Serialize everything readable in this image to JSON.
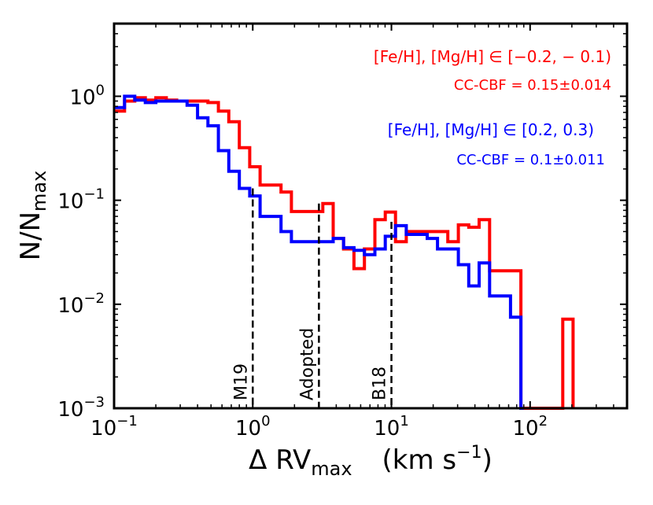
{
  "chart_data": {
    "type": "line",
    "style": "step-histogram",
    "x_scale": "log",
    "y_scale": "log",
    "xlim": [
      0.1,
      500
    ],
    "ylim": [
      0.001,
      5
    ],
    "xlabel": {
      "prefix": "Δ RV",
      "sub": "max",
      "units": "(km s",
      "units_sup": "−1",
      "units_close": ")"
    },
    "ylabel": {
      "main": "N/N",
      "sub": "max"
    },
    "x_ticks": [
      {
        "value": 0.1,
        "base": "10",
        "exp": "−1"
      },
      {
        "value": 1,
        "base": "10",
        "exp": "0"
      },
      {
        "value": 10,
        "base": "10",
        "exp": "1"
      },
      {
        "value": 100,
        "base": "10",
        "exp": "2"
      }
    ],
    "y_ticks": [
      {
        "value": 0.001,
        "base": "10",
        "exp": "−3"
      },
      {
        "value": 0.01,
        "base": "10",
        "exp": "−2"
      },
      {
        "value": 0.1,
        "base": "10",
        "exp": "−1"
      },
      {
        "value": 1,
        "base": "10",
        "exp": "0"
      }
    ],
    "series": [
      {
        "name": "[Fe/H], [Mg/H] ∈ [−0.2, − 0.1)",
        "color": "#ff0000",
        "cbf": "CC-CBF = 0.15±0.014",
        "edges": [
          0.1,
          0.119,
          0.141,
          0.168,
          0.2,
          0.238,
          0.283,
          0.336,
          0.4,
          0.475,
          0.565,
          0.672,
          0.8,
          0.951,
          1.13,
          1.34,
          1.6,
          1.9,
          2.26,
          2.69,
          3.2,
          3.8,
          4.52,
          5.37,
          6.39,
          7.6,
          9.03,
          10.7,
          12.8,
          15.2,
          18.1,
          21.5,
          25.5,
          30.4,
          36.1,
          42.9,
          51.0,
          60.7,
          72.2,
          85.8,
          102,
          121,
          144,
          172,
          204
        ],
        "values": [
          0.72,
          0.9,
          0.97,
          0.92,
          0.97,
          0.92,
          0.9,
          0.9,
          0.9,
          0.87,
          0.72,
          0.57,
          0.32,
          0.21,
          0.14,
          0.14,
          0.12,
          0.078,
          0.078,
          0.078,
          0.093,
          0.043,
          0.034,
          0.022,
          0.034,
          0.065,
          0.077,
          0.04,
          0.05,
          0.05,
          0.05,
          0.05,
          0.04,
          0.058,
          0.055,
          0.065,
          0.021,
          0.021,
          0.021,
          0,
          0,
          0,
          0,
          0.0072
        ]
      },
      {
        "name": "[Fe/H], [Mg/H] ∈ [0.2, 0.3)",
        "color": "#0000ff",
        "cbf": "CC-CBF = 0.1±0.011",
        "edges": [
          0.1,
          0.119,
          0.141,
          0.168,
          0.2,
          0.238,
          0.283,
          0.336,
          0.4,
          0.475,
          0.565,
          0.672,
          0.8,
          0.951,
          1.13,
          1.34,
          1.6,
          1.9,
          2.26,
          2.69,
          3.2,
          3.8,
          4.52,
          5.37,
          6.39,
          7.6,
          9.03,
          10.7,
          12.8,
          15.2,
          18.1,
          21.5,
          25.5,
          30.4,
          36.1,
          42.9,
          51.0,
          60.7,
          72.2,
          85.8,
          90.0
        ],
        "values": [
          0.78,
          1.0,
          0.92,
          0.87,
          0.9,
          0.9,
          0.9,
          0.82,
          0.62,
          0.52,
          0.3,
          0.19,
          0.13,
          0.11,
          0.07,
          0.07,
          0.05,
          0.04,
          0.04,
          0.04,
          0.04,
          0.043,
          0.035,
          0.033,
          0.03,
          0.034,
          0.045,
          0.057,
          0.047,
          0.047,
          0.043,
          0.034,
          0.034,
          0.024,
          0.015,
          0.025,
          0.012,
          0.012,
          0.0075,
          0.001
        ]
      }
    ],
    "vlines": [
      {
        "x": 1,
        "label": "M19",
        "y_top": 0.13
      },
      {
        "x": 3,
        "label": "Adopted",
        "y_top": 0.093
      },
      {
        "x": 10,
        "label": "B18",
        "y_top": 0.062
      }
    ]
  }
}
